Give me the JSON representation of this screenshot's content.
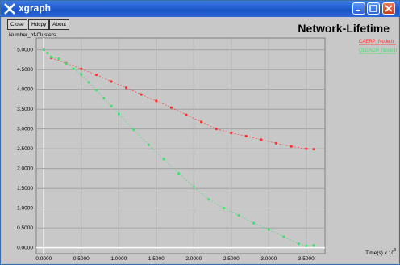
{
  "window": {
    "title": "xgraph",
    "buttons": [
      "Close",
      "Hdcpy",
      "About"
    ]
  },
  "graph_title": "Network-Lifetime",
  "chart_data": {
    "type": "scatter",
    "title": "Network-Lifetime",
    "ylabel": "Number_of-Clusters",
    "xlabel": "Time(s) x 10^3",
    "x_ticks": [
      "0.0000",
      "0.5000",
      "1.0000",
      "1.5000",
      "2.0000",
      "2.5000",
      "3.0000",
      "3.5000"
    ],
    "y_ticks": [
      "0.0000",
      "0.5000",
      "1.0000",
      "1.5000",
      "2.0000",
      "2.5000",
      "3.0000",
      "3.5000",
      "4.0000",
      "4.5000",
      "5.0000"
    ],
    "xlim": [
      -0.1,
      3.75
    ],
    "ylim": [
      -0.15,
      5.3
    ],
    "grid": true,
    "legend_position": "top-right",
    "series": [
      {
        "name": "CAERP_Node.tr",
        "color": "#ff3030",
        "x": [
          0.1,
          0.3,
          0.5,
          0.7,
          0.9,
          1.1,
          1.3,
          1.5,
          1.7,
          1.9,
          2.1,
          2.3,
          2.5,
          2.7,
          2.9,
          3.1,
          3.3,
          3.5,
          3.6
        ],
        "y": [
          4.8,
          4.66,
          4.52,
          4.37,
          4.2,
          4.04,
          3.87,
          3.71,
          3.54,
          3.36,
          3.18,
          3.0,
          2.9,
          2.82,
          2.73,
          2.64,
          2.56,
          2.5,
          2.49
        ]
      },
      {
        "name": "QLEACH_Node.tr",
        "color": "#40e070",
        "x": [
          0.0,
          0.05,
          0.1,
          0.2,
          0.3,
          0.4,
          0.5,
          0.6,
          0.7,
          0.8,
          0.9,
          1.0,
          1.2,
          1.4,
          1.6,
          1.8,
          2.0,
          2.2,
          2.4,
          2.6,
          2.8,
          3.0,
          3.2,
          3.4,
          3.5,
          3.6
        ],
        "y": [
          5.0,
          4.92,
          4.82,
          4.78,
          4.65,
          4.52,
          4.38,
          4.18,
          3.98,
          3.78,
          3.58,
          3.38,
          2.98,
          2.6,
          2.24,
          1.88,
          1.54,
          1.22,
          1.0,
          0.82,
          0.62,
          0.46,
          0.28,
          0.1,
          0.05,
          0.06
        ]
      }
    ]
  }
}
